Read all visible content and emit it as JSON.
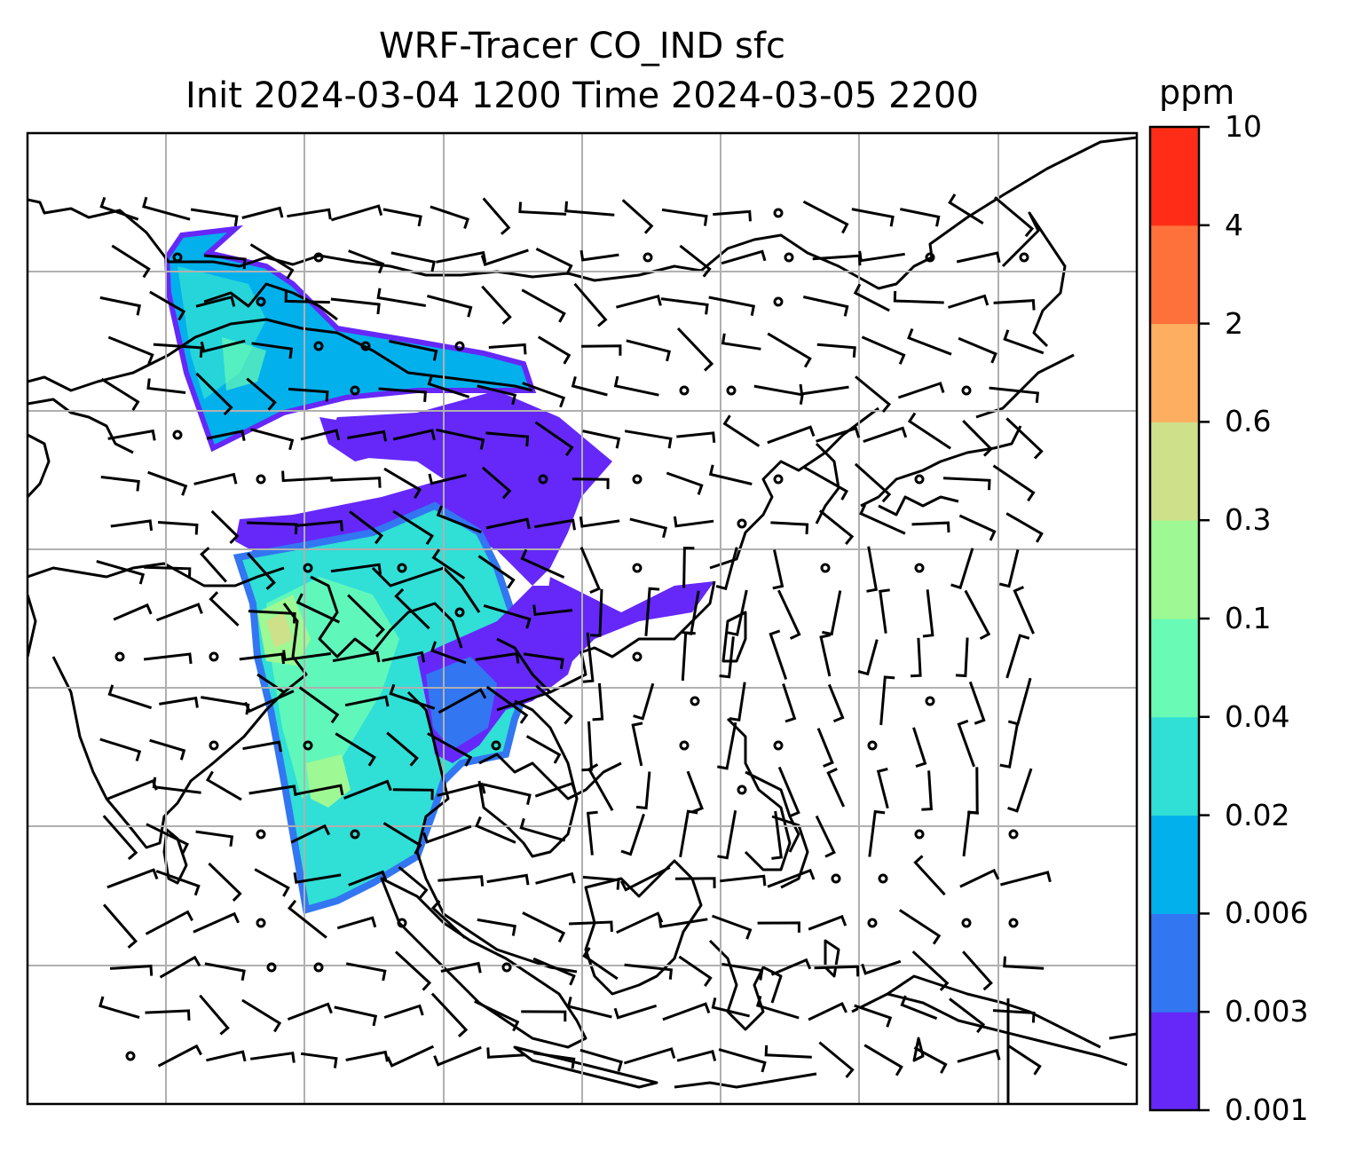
{
  "title": {
    "line1": "WRF-Tracer CO_IND sfc",
    "line2": "Init 2024-03-04 1200 Time 2024-03-05 2200"
  },
  "colorbar": {
    "unit": "ppm",
    "levels": [
      "0.001",
      "0.003",
      "0.006",
      "0.02",
      "0.04",
      "0.1",
      "0.3",
      "0.6",
      "2",
      "4",
      "10"
    ],
    "colors": [
      "#6528f9",
      "#3376f2",
      "#02b0ec",
      "#30dfd5",
      "#69fbb5",
      "#9ef893",
      "#cfe08b",
      "#fdae60",
      "#ff713b",
      "#ff2d17"
    ]
  },
  "map": {
    "gridline_color": "#b0b0b0",
    "coast_color": "#000000",
    "tracer_regions": [
      "north plume",
      "middle band",
      "southeast asia plume",
      "east extension"
    ]
  }
}
